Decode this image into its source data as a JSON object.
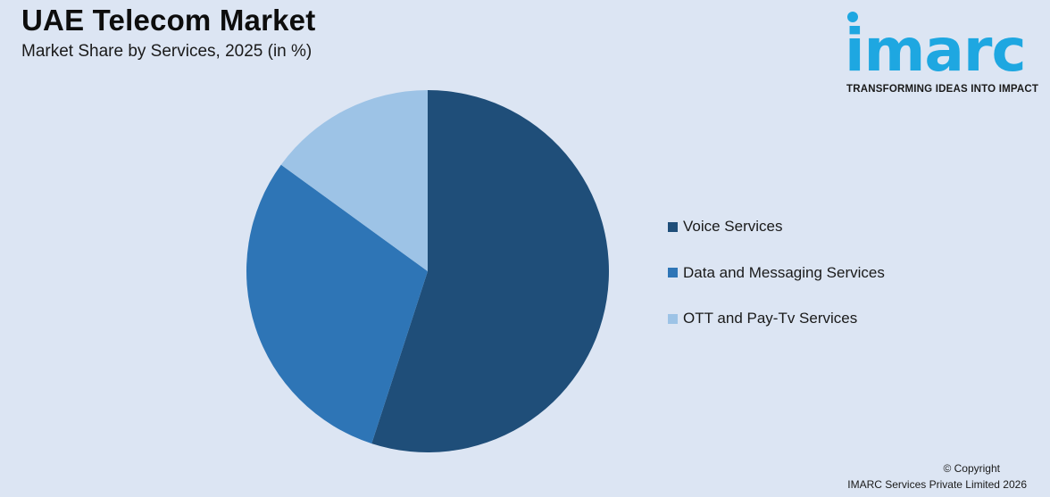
{
  "header": {
    "title": "UAE Telecom Market",
    "subtitle": "Market Share by Services, 2025 (in %)"
  },
  "logo": {
    "word": "imarc",
    "tagline": "TRANSFORMING IDEAS INTO IMPACT"
  },
  "chart_data": {
    "type": "pie",
    "title": "UAE Telecom Market",
    "subtitle": "Market Share by Services, 2025 (in %)",
    "legend_position": "right",
    "series": [
      {
        "name": "Voice Services",
        "value": 55,
        "color": "#1f4e79"
      },
      {
        "name": "Data and Messaging Services",
        "value": 30,
        "color": "#2e75b6"
      },
      {
        "name": "OTT and Pay-Tv Services",
        "value": 15,
        "color": "#9dc3e6"
      }
    ]
  },
  "footer": {
    "copyright": "© Copyright",
    "company": "IMARC Services Private Limited 2026"
  }
}
